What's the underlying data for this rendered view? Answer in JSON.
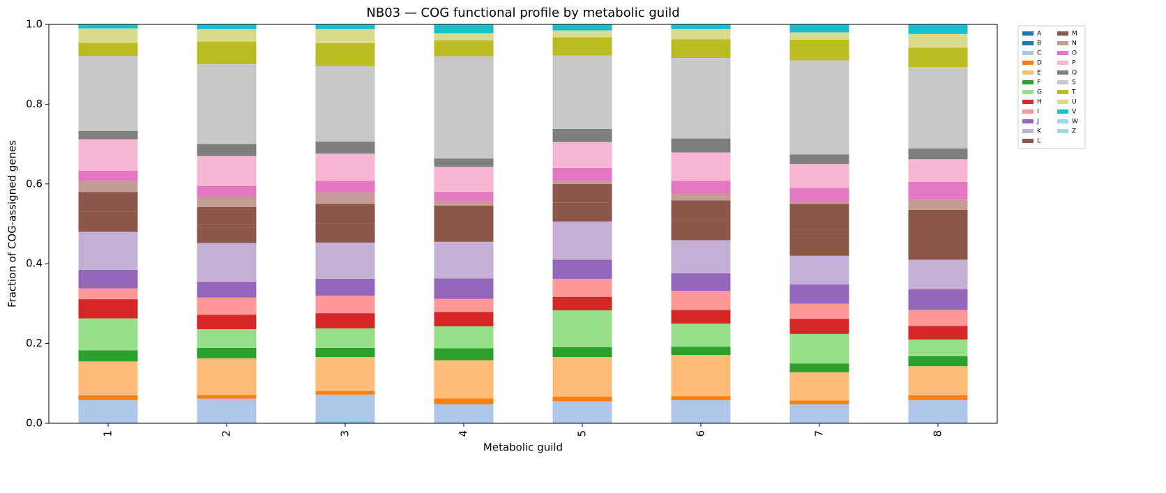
{
  "chart_data": {
    "type": "stacked-bar",
    "title": "NB03 — COG functional profile by metabolic guild",
    "x_label": "Metabolic guild",
    "y_label": "Fraction of COG-assigned genes",
    "categories": [
      "1",
      "2",
      "3",
      "4",
      "5",
      "6",
      "7",
      "8"
    ],
    "ylim": [
      0,
      1
    ],
    "yticks": [
      {
        "value": 0,
        "label": "0.0"
      },
      0.2,
      0.4,
      0.6,
      0.8,
      {
        "value": 1,
        "label": "1.0"
      }
    ],
    "legend": "outside-upper-right",
    "series": [
      {
        "name": "A",
        "color": "#1f77b4",
        "values": [
          0,
          0,
          0.002,
          0,
          0,
          0,
          0,
          0
        ]
      },
      {
        "name": "B",
        "color": "#1f77b4",
        "values": [
          0,
          0,
          0,
          0,
          0,
          0,
          0,
          0
        ]
      },
      {
        "name": "C",
        "color": "#aec7e8",
        "values": [
          0.058,
          0.062,
          0.07,
          0.048,
          0.055,
          0.058,
          0.048,
          0.058
        ]
      },
      {
        "name": "D",
        "color": "#ff7f0e",
        "values": [
          0.012,
          0.009,
          0.009,
          0.014,
          0.012,
          0.01,
          0.009,
          0.012
        ]
      },
      {
        "name": "E",
        "color": "#ffbb78",
        "values": [
          0.085,
          0.092,
          0.085,
          0.096,
          0.099,
          0.103,
          0.071,
          0.073
        ]
      },
      {
        "name": "F",
        "color": "#2ca02c",
        "values": [
          0.028,
          0.026,
          0.023,
          0.03,
          0.025,
          0.021,
          0.022,
          0.025
        ]
      },
      {
        "name": "G",
        "color": "#98df8a",
        "values": [
          0.08,
          0.047,
          0.049,
          0.055,
          0.092,
          0.058,
          0.074,
          0.042
        ]
      },
      {
        "name": "H",
        "color": "#d62728",
        "values": [
          0.048,
          0.036,
          0.038,
          0.036,
          0.034,
          0.034,
          0.038,
          0.034
        ]
      },
      {
        "name": "I",
        "color": "#ff9896",
        "values": [
          0.027,
          0.043,
          0.044,
          0.033,
          0.045,
          0.048,
          0.038,
          0.04
        ]
      },
      {
        "name": "J",
        "color": "#9467bd",
        "values": [
          0.047,
          0.04,
          0.042,
          0.051,
          0.048,
          0.044,
          0.048,
          0.052
        ]
      },
      {
        "name": "K",
        "color": "#c5b0d5",
        "values": [
          0.095,
          0.097,
          0.091,
          0.092,
          0.096,
          0.083,
          0.072,
          0.074
        ]
      },
      {
        "name": "L",
        "color": "#8c564b",
        "values": [
          0.05,
          0.045,
          0.048,
          0.045,
          0.047,
          0.05,
          0.065,
          0.062
        ]
      },
      {
        "name": "M",
        "color": "#8c564b",
        "values": [
          0.05,
          0.045,
          0.049,
          0.046,
          0.047,
          0.05,
          0.065,
          0.063
        ]
      },
      {
        "name": "N",
        "color": "#c49c94",
        "values": [
          0.027,
          0.026,
          0.029,
          0.011,
          0.007,
          0.017,
          0.005,
          0.026
        ]
      },
      {
        "name": "O",
        "color": "#e377c2",
        "values": [
          0.026,
          0.027,
          0.029,
          0.023,
          0.033,
          0.032,
          0.035,
          0.044
        ]
      },
      {
        "name": "P",
        "color": "#f7b6d2",
        "values": [
          0.079,
          0.075,
          0.068,
          0.063,
          0.065,
          0.071,
          0.06,
          0.057
        ]
      },
      {
        "name": "Q",
        "color": "#7f7f7f",
        "values": [
          0.021,
          0.03,
          0.03,
          0.021,
          0.033,
          0.035,
          0.024,
          0.027
        ]
      },
      {
        "name": "S",
        "color": "#c7c7c7",
        "values": [
          0.188,
          0.2,
          0.189,
          0.256,
          0.184,
          0.202,
          0.236,
          0.204
        ]
      },
      {
        "name": "T",
        "color": "#bcbd22",
        "values": [
          0.033,
          0.057,
          0.058,
          0.04,
          0.046,
          0.047,
          0.052,
          0.049
        ]
      },
      {
        "name": "U",
        "color": "#dbdb8d",
        "values": [
          0.036,
          0.031,
          0.035,
          0.018,
          0.017,
          0.025,
          0.018,
          0.034
        ]
      },
      {
        "name": "V",
        "color": "#17becf",
        "values": [
          0.01,
          0.012,
          0.012,
          0.022,
          0.015,
          0.012,
          0.02,
          0.024
        ]
      },
      {
        "name": "W",
        "color": "#9edae5",
        "values": [
          0,
          0,
          0,
          0,
          0,
          0,
          0,
          0
        ]
      },
      {
        "name": "Z",
        "color": "#9edae5",
        "values": [
          0,
          0,
          0,
          0,
          0,
          0,
          0,
          0
        ]
      }
    ]
  }
}
